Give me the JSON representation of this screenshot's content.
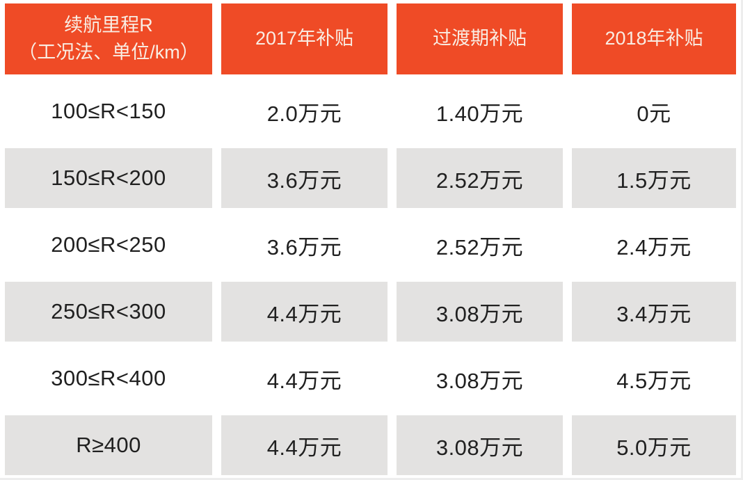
{
  "colors": {
    "accent_orange": "#EF4B26",
    "header_text": "#F9EDE3",
    "alt_row_gray": "#E3E2E1",
    "body_text": "#202020",
    "background": "#FFFFFF"
  },
  "header": {
    "col1_line1": "续航里程R",
    "col1_line2": "（工况法、单位/km）",
    "col2": "2017年补贴",
    "col3": "过渡期补贴",
    "col4": "2018年补贴"
  },
  "rows": [
    [
      "100≤R<150",
      "2.0万元",
      "1.40万元",
      "0元"
    ],
    [
      "150≤R<200",
      "3.6万元",
      "2.52万元",
      "1.5万元"
    ],
    [
      "200≤R<250",
      "3.6万元",
      "2.52万元",
      "2.4万元"
    ],
    [
      "250≤R<300",
      "4.4万元",
      "3.08万元",
      "3.4万元"
    ],
    [
      "300≤R<400",
      "4.4万元",
      "3.08万元",
      "4.5万元"
    ],
    [
      "R≥400",
      "4.4万元",
      "3.08万元",
      "5.0万元"
    ]
  ],
  "chart_data": {
    "type": "table",
    "title": "",
    "columns": [
      "续航里程R（工况法、单位/km）",
      "2017年补贴",
      "过渡期补贴",
      "2018年补贴"
    ],
    "rows": [
      [
        "100≤R<150",
        "2.0万元",
        "1.40万元",
        "0元"
      ],
      [
        "150≤R<200",
        "3.6万元",
        "2.52万元",
        "1.5万元"
      ],
      [
        "200≤R<250",
        "3.6万元",
        "2.52万元",
        "2.4万元"
      ],
      [
        "250≤R<300",
        "4.4万元",
        "3.08万元",
        "3.4万元"
      ],
      [
        "300≤R<400",
        "4.4万元",
        "3.08万元",
        "4.5万元"
      ],
      [
        "R≥400",
        "4.4万元",
        "3.08万元",
        "5.0万元"
      ]
    ],
    "series": [
      {
        "name": "2017年补贴(万元)",
        "values": [
          2.0,
          3.6,
          3.6,
          4.4,
          4.4,
          4.4
        ]
      },
      {
        "name": "过渡期补贴(万元)",
        "values": [
          1.4,
          2.52,
          2.52,
          3.08,
          3.08,
          3.08
        ]
      },
      {
        "name": "2018年补贴(万元)",
        "values": [
          0,
          1.5,
          2.4,
          3.4,
          4.5,
          5.0
        ]
      }
    ],
    "categories": [
      "100≤R<150",
      "150≤R<200",
      "200≤R<250",
      "250≤R<300",
      "300≤R<400",
      "R≥400"
    ],
    "layout": {
      "header_background": "#EF4B26",
      "alternating_rows": true,
      "legend_position": "none",
      "grid": false
    }
  }
}
